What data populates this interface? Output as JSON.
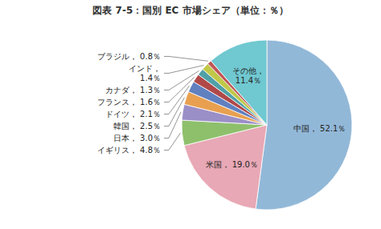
{
  "chart_data": {
    "type": "pie",
    "title": "図表 7-5：国別 EC 市場シェア（単位：％）",
    "categories": [
      "中国",
      "米国",
      "イギリス",
      "日本",
      "韓国",
      "ドイツ",
      "フランス",
      "カナダ",
      "インド",
      "ブラジル",
      "その他"
    ],
    "values": [
      52.1,
      19.0,
      4.8,
      3.0,
      2.5,
      2.1,
      1.6,
      1.3,
      1.4,
      0.8,
      11.4
    ],
    "value_labels": [
      "中国， 52.1％",
      "米国， 19.0％",
      "イギリス， 4.8％",
      "日本， 3.0％",
      "韓国， 2.5％",
      "ドイツ， 2.1％",
      "フランス， 1.6％",
      "カナダ， 1.3％",
      "インド，\n1.4％",
      "ブラジル， 0.8％",
      "その他，\n11.4％"
    ],
    "colors": [
      "#92b8d8",
      "#e8a8b5",
      "#8ec06c",
      "#9b8fc8",
      "#e8a050",
      "#6080c0",
      "#b04848",
      "#50a0a8",
      "#c0c848",
      "#c05858",
      "#70c8d0"
    ],
    "data_labels": true
  }
}
